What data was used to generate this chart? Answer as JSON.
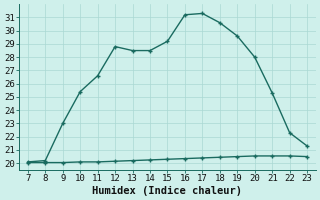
{
  "x": [
    7,
    8,
    9,
    10,
    11,
    12,
    13,
    14,
    15,
    16,
    17,
    18,
    19,
    20,
    21,
    22,
    23
  ],
  "y_main": [
    20.1,
    20.2,
    23.0,
    25.4,
    26.6,
    28.8,
    28.5,
    28.5,
    29.2,
    31.2,
    31.3,
    30.6,
    29.6,
    28.0,
    25.3,
    22.3,
    21.3
  ],
  "y_low": [
    20.05,
    20.05,
    20.05,
    20.1,
    20.1,
    20.15,
    20.2,
    20.25,
    20.3,
    20.35,
    20.4,
    20.45,
    20.5,
    20.55,
    20.55,
    20.55,
    20.5
  ],
  "line_color": "#1a6b60",
  "bg_color": "#cff0eb",
  "grid_color": "#aad9d3",
  "spine_color": "#1a6b60",
  "xlabel": "Humidex (Indice chaleur)",
  "xlim": [
    6.5,
    23.5
  ],
  "ylim": [
    19.5,
    32.0
  ],
  "xticks": [
    7,
    8,
    9,
    10,
    11,
    12,
    13,
    14,
    15,
    16,
    17,
    18,
    19,
    20,
    21,
    22,
    23
  ],
  "yticks": [
    20,
    21,
    22,
    23,
    24,
    25,
    26,
    27,
    28,
    29,
    30,
    31
  ],
  "xlabel_fontsize": 7.5,
  "tick_fontsize": 6.5,
  "marker_size": 2.5,
  "linewidth": 1.0
}
